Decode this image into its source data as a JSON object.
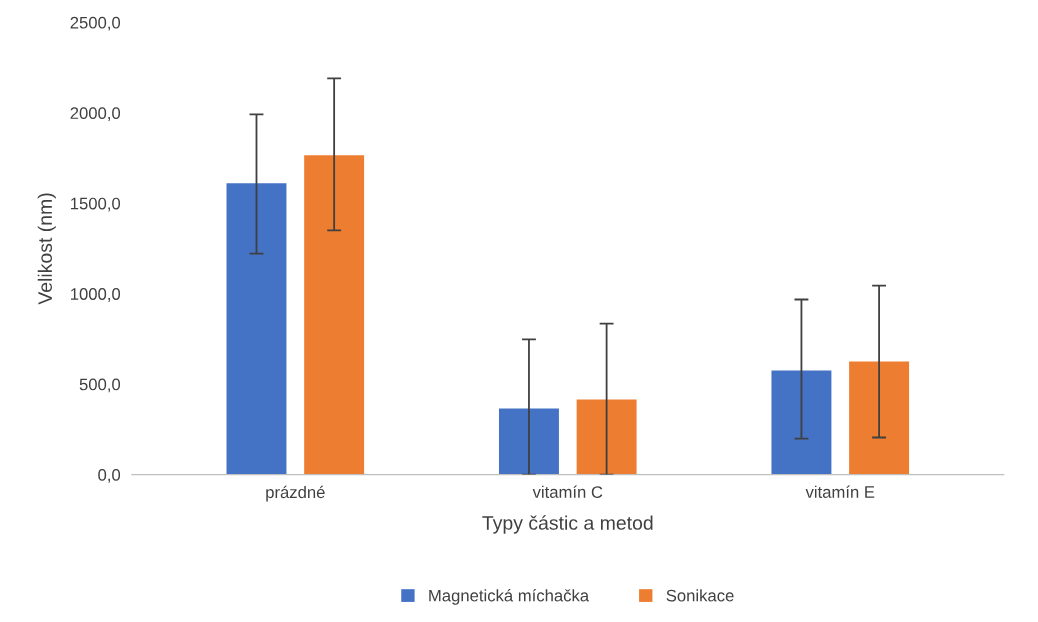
{
  "chart_data": {
    "type": "bar",
    "xlabel": "Typy částic a metod",
    "ylabel": "Velikost (nm)",
    "categories": [
      "prázdné",
      "vitamín C",
      "vitamín E"
    ],
    "series": [
      {
        "name": "Magnetická míchačka",
        "color": "#4472c4",
        "values": [
          1610,
          365,
          575
        ],
        "errors": [
          [
            1222,
            1991
          ],
          [
            0,
            747
          ],
          [
            199,
            968
          ]
        ]
      },
      {
        "name": "Sonikace",
        "color": "#ed7d31",
        "values": [
          1765,
          415,
          625
        ],
        "errors": [
          [
            1350,
            2190
          ],
          [
            0,
            835
          ],
          [
            205,
            1045
          ]
        ]
      }
    ],
    "ylim": [
      0,
      2500
    ],
    "yticks": [
      {
        "value": 0,
        "label": "0,0"
      },
      {
        "value": 500,
        "label": "500,0"
      },
      {
        "value": 1000,
        "label": "1000,0"
      },
      {
        "value": 1500,
        "label": "1500,0"
      },
      {
        "value": 2000,
        "label": "2000,0"
      },
      {
        "value": 2500,
        "label": "2500,0"
      }
    ],
    "grid": false,
    "legend": "bottom"
  }
}
